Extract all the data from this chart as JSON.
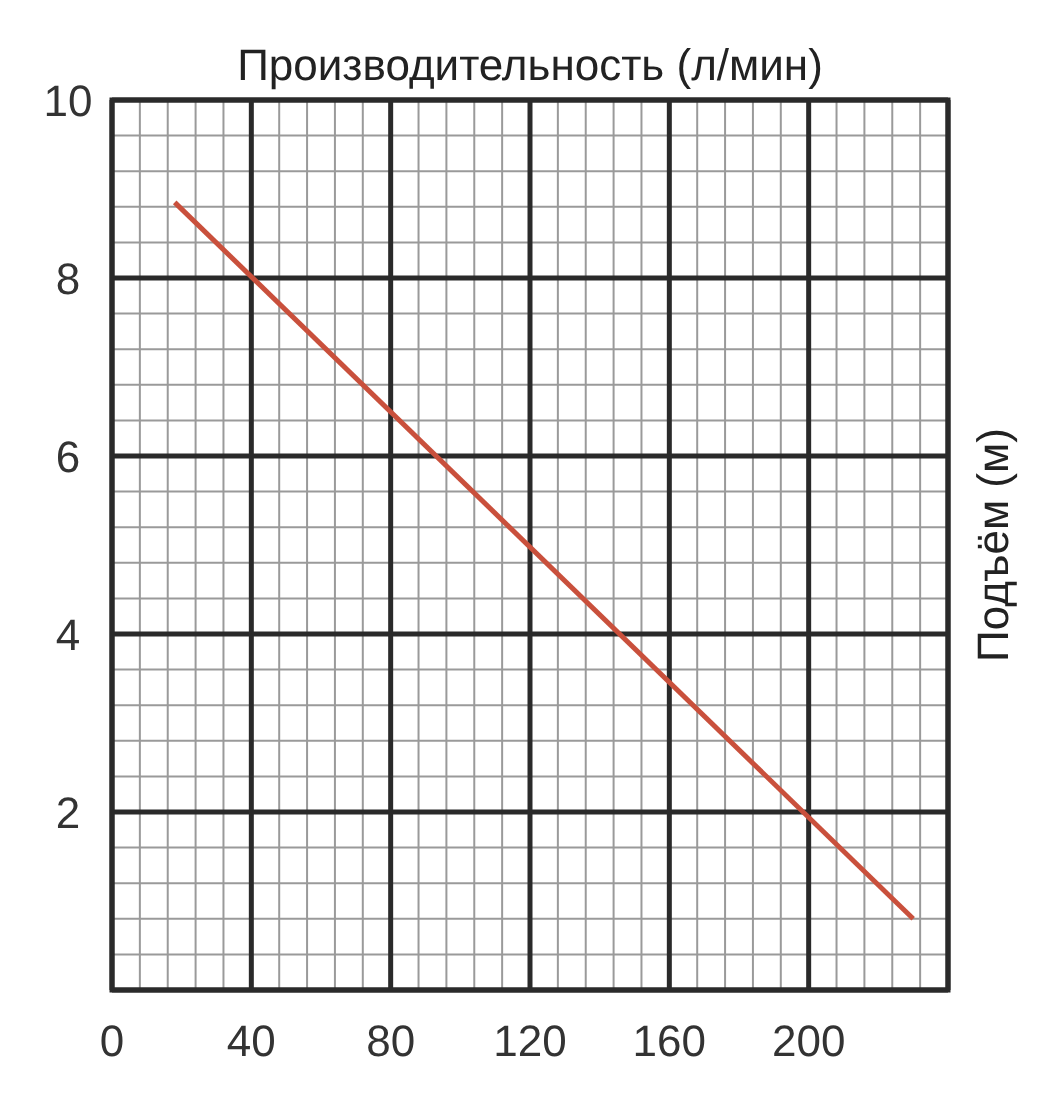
{
  "chart_data": {
    "type": "line",
    "xlabel": "Производительность (л/мин)",
    "ylabel": "Подъём (м)",
    "x": [
      18,
      230
    ],
    "series": [
      {
        "color": "#c9503c",
        "values": [
          8.85,
          0.8
        ]
      }
    ],
    "xlim": [
      0,
      240
    ],
    "xticks": [
      0,
      40,
      80,
      120,
      160,
      200,
      {
        "value": 240,
        "label": null
      }
    ],
    "ylim": [
      0,
      10
    ],
    "yticks": [
      {
        "value": 0,
        "label": null
      },
      2,
      4,
      6,
      8,
      10
    ],
    "grid": true,
    "marker": "none",
    "line_style": "solid"
  }
}
